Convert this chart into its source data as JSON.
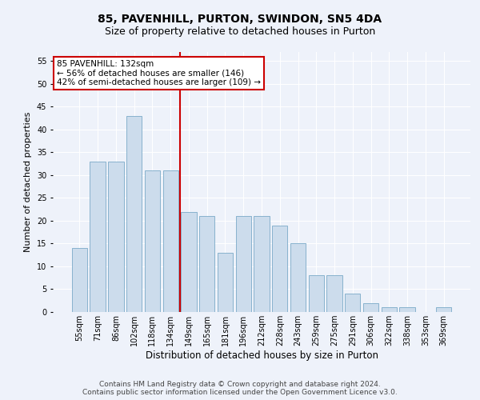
{
  "title": "85, PAVENHILL, PURTON, SWINDON, SN5 4DA",
  "subtitle": "Size of property relative to detached houses in Purton",
  "xlabel": "Distribution of detached houses by size in Purton",
  "ylabel": "Number of detached properties",
  "categories": [
    "55sqm",
    "71sqm",
    "86sqm",
    "102sqm",
    "118sqm",
    "134sqm",
    "149sqm",
    "165sqm",
    "181sqm",
    "196sqm",
    "212sqm",
    "228sqm",
    "243sqm",
    "259sqm",
    "275sqm",
    "291sqm",
    "306sqm",
    "322sqm",
    "338sqm",
    "353sqm",
    "369sqm"
  ],
  "values": [
    14,
    33,
    33,
    43,
    31,
    31,
    22,
    21,
    13,
    21,
    21,
    19,
    15,
    8,
    8,
    4,
    2,
    1,
    1,
    0,
    1
  ],
  "bar_color": "#ccdcec",
  "bar_edge_color": "#7aaac8",
  "red_line_index": 6,
  "annotation_line1": "85 PAVENHILL: 132sqm",
  "annotation_line2": "← 56% of detached houses are smaller (146)",
  "annotation_line3": "42% of semi-detached houses are larger (109) →",
  "annotation_box_color": "#ffffff",
  "annotation_box_edge": "#cc0000",
  "ylim": [
    0,
    57
  ],
  "yticks": [
    0,
    5,
    10,
    15,
    20,
    25,
    30,
    35,
    40,
    45,
    50,
    55
  ],
  "background_color": "#eef2fa",
  "footer1": "Contains HM Land Registry data © Crown copyright and database right 2024.",
  "footer2": "Contains public sector information licensed under the Open Government Licence v3.0.",
  "title_fontsize": 10,
  "subtitle_fontsize": 9,
  "xlabel_fontsize": 8.5,
  "ylabel_fontsize": 8,
  "tick_fontsize": 7,
  "footer_fontsize": 6.5,
  "ann_fontsize": 7.5
}
